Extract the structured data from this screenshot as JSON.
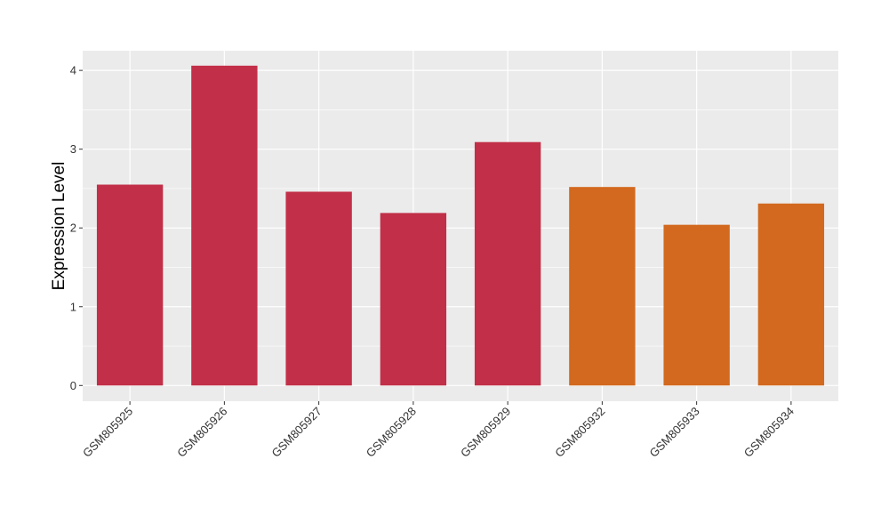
{
  "chart_data": {
    "type": "bar",
    "title": "",
    "xlabel": "",
    "ylabel": "Expression Level",
    "categories": [
      "GSM805925",
      "GSM805926",
      "GSM805927",
      "GSM805928",
      "GSM805929",
      "GSM805932",
      "GSM805933",
      "GSM805934"
    ],
    "values": [
      2.55,
      4.06,
      2.46,
      2.19,
      3.09,
      2.52,
      2.04,
      2.31
    ],
    "groups": [
      "a",
      "a",
      "a",
      "a",
      "a",
      "b",
      "b",
      "b"
    ],
    "group_colors": {
      "a": "#c22f48",
      "b": "#d2691e"
    },
    "ylim": [
      -0.2,
      4.25
    ],
    "yticks": [
      0,
      1,
      2,
      3,
      4
    ],
    "grid": true,
    "legend": "none",
    "panel_background": "#ebebeb",
    "grid_color": "#ffffff"
  }
}
